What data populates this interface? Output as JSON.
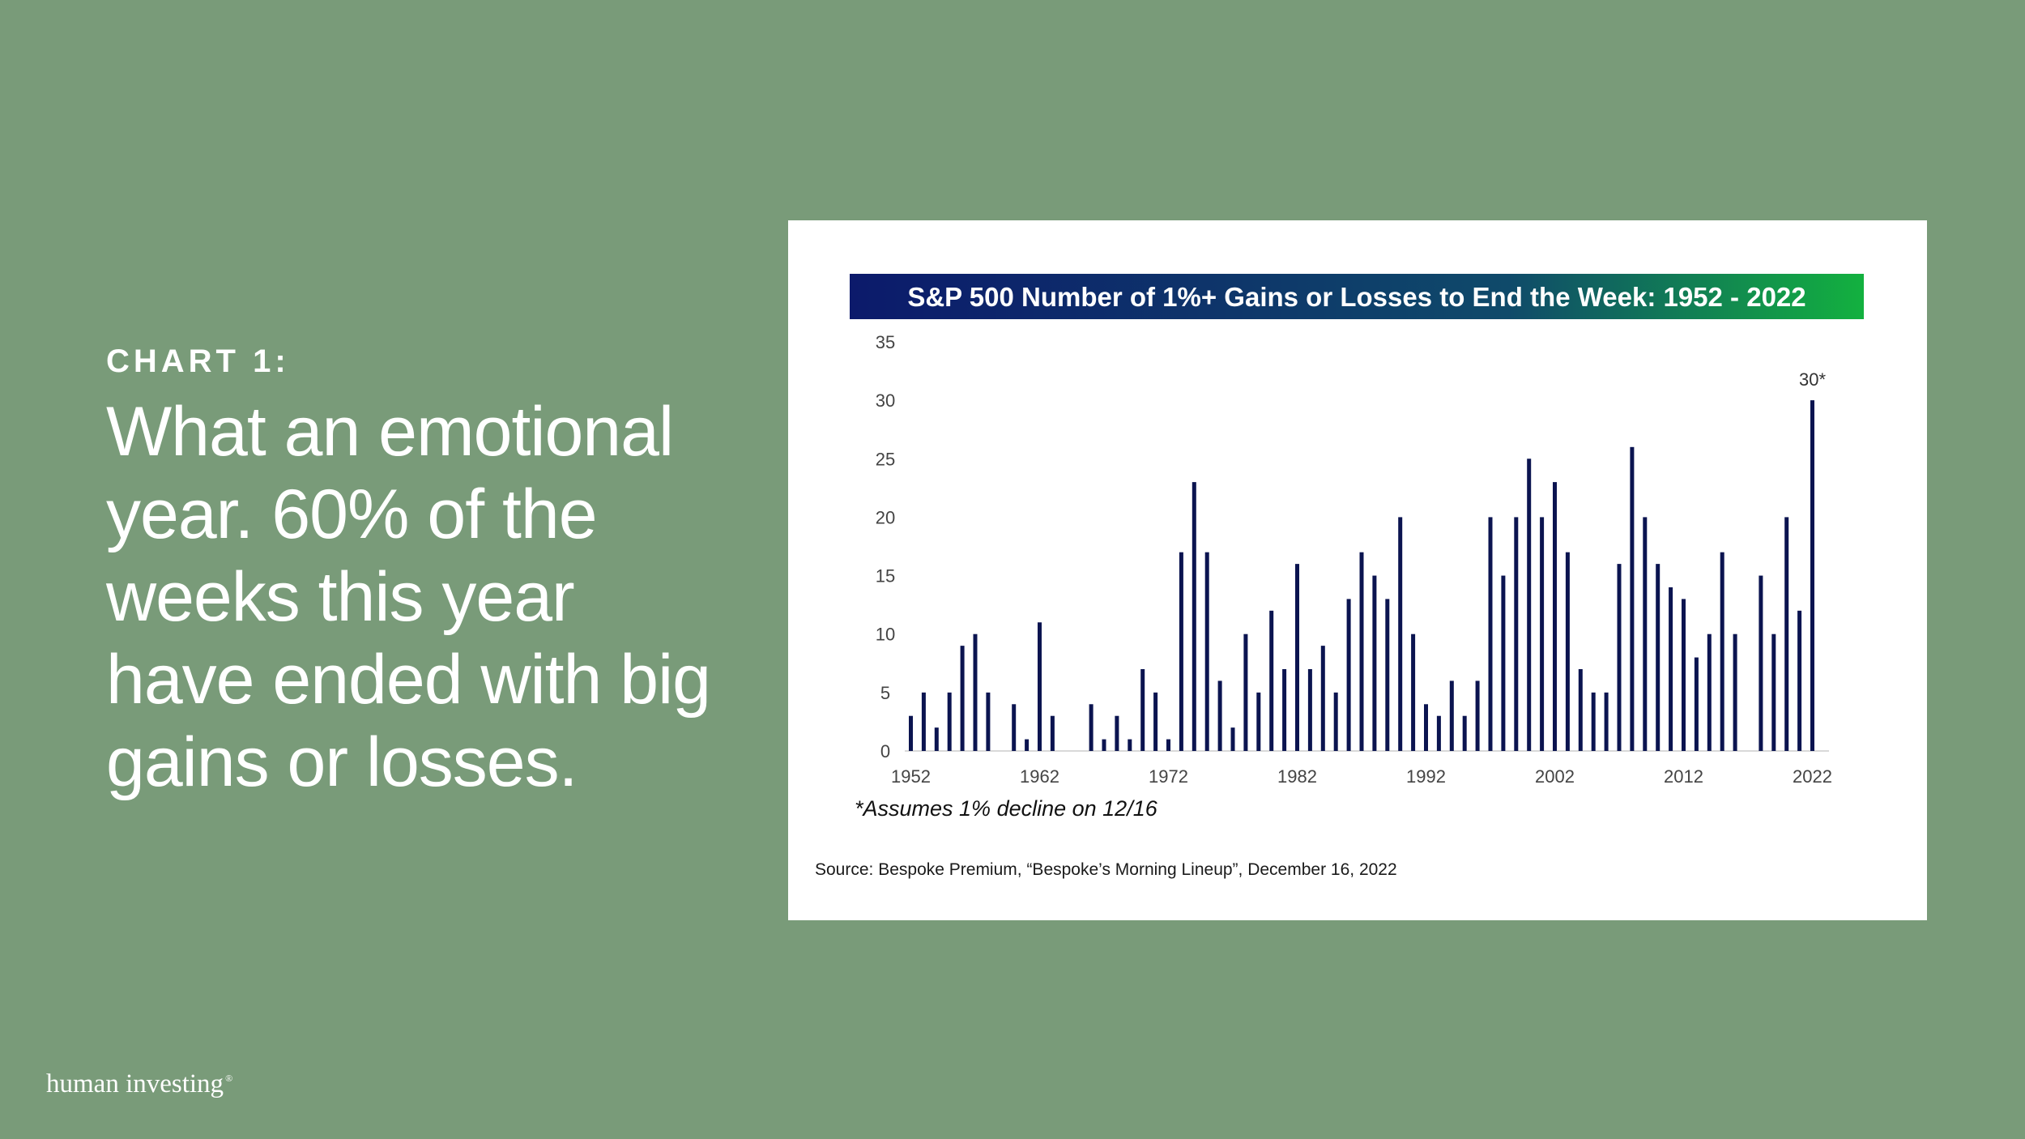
{
  "slide": {
    "eyebrow": "CHART 1:",
    "headline": "What an emotional year. 60% of the weeks this year have ended with big gains or losses."
  },
  "chart_data": {
    "type": "bar",
    "title": "S&P 500 Number of 1%+ Gains or Losses to End the Week: 1952 - 2022",
    "years": [
      1952,
      1953,
      1954,
      1955,
      1956,
      1957,
      1958,
      1959,
      1960,
      1961,
      1962,
      1963,
      1964,
      1965,
      1966,
      1967,
      1968,
      1969,
      1970,
      1971,
      1972,
      1973,
      1974,
      1975,
      1976,
      1977,
      1978,
      1979,
      1980,
      1981,
      1982,
      1983,
      1984,
      1985,
      1986,
      1987,
      1988,
      1989,
      1990,
      1991,
      1992,
      1993,
      1994,
      1995,
      1996,
      1997,
      1998,
      1999,
      2000,
      2001,
      2002,
      2003,
      2004,
      2005,
      2006,
      2007,
      2008,
      2009,
      2010,
      2011,
      2012,
      2013,
      2014,
      2015,
      2016,
      2017,
      2018,
      2019,
      2020,
      2021,
      2022
    ],
    "values": [
      3,
      5,
      2,
      5,
      9,
      10,
      5,
      0,
      4,
      1,
      11,
      3,
      0,
      0,
      4,
      1,
      3,
      1,
      7,
      5,
      1,
      17,
      23,
      17,
      6,
      2,
      10,
      5,
      12,
      7,
      16,
      7,
      9,
      5,
      13,
      17,
      15,
      13,
      20,
      10,
      4,
      3,
      6,
      3,
      6,
      20,
      15,
      20,
      25,
      20,
      23,
      17,
      7,
      5,
      5,
      16,
      26,
      20,
      16,
      14,
      13,
      8,
      10,
      17,
      10,
      0,
      15,
      10,
      20,
      12,
      30
    ],
    "x_tick_labels": [
      "1952",
      "1962",
      "1972",
      "1982",
      "1992",
      "2002",
      "2012",
      "2022"
    ],
    "y_tick_labels": [
      "0",
      "5",
      "10",
      "15",
      "20",
      "25",
      "30",
      "35"
    ],
    "ylim": [
      0,
      35
    ],
    "annotation": "30*",
    "footnote": "*Assumes 1% decline on 12/16",
    "bar_color": "#0b1450",
    "title_gradient": [
      "#0c1a6b",
      "#13b13f"
    ]
  },
  "source": "Source: Bespoke Premium, “Bespoke’s Morning Lineup”, December 16, 2022",
  "brand": {
    "name": "human investing",
    "mark": "®"
  }
}
